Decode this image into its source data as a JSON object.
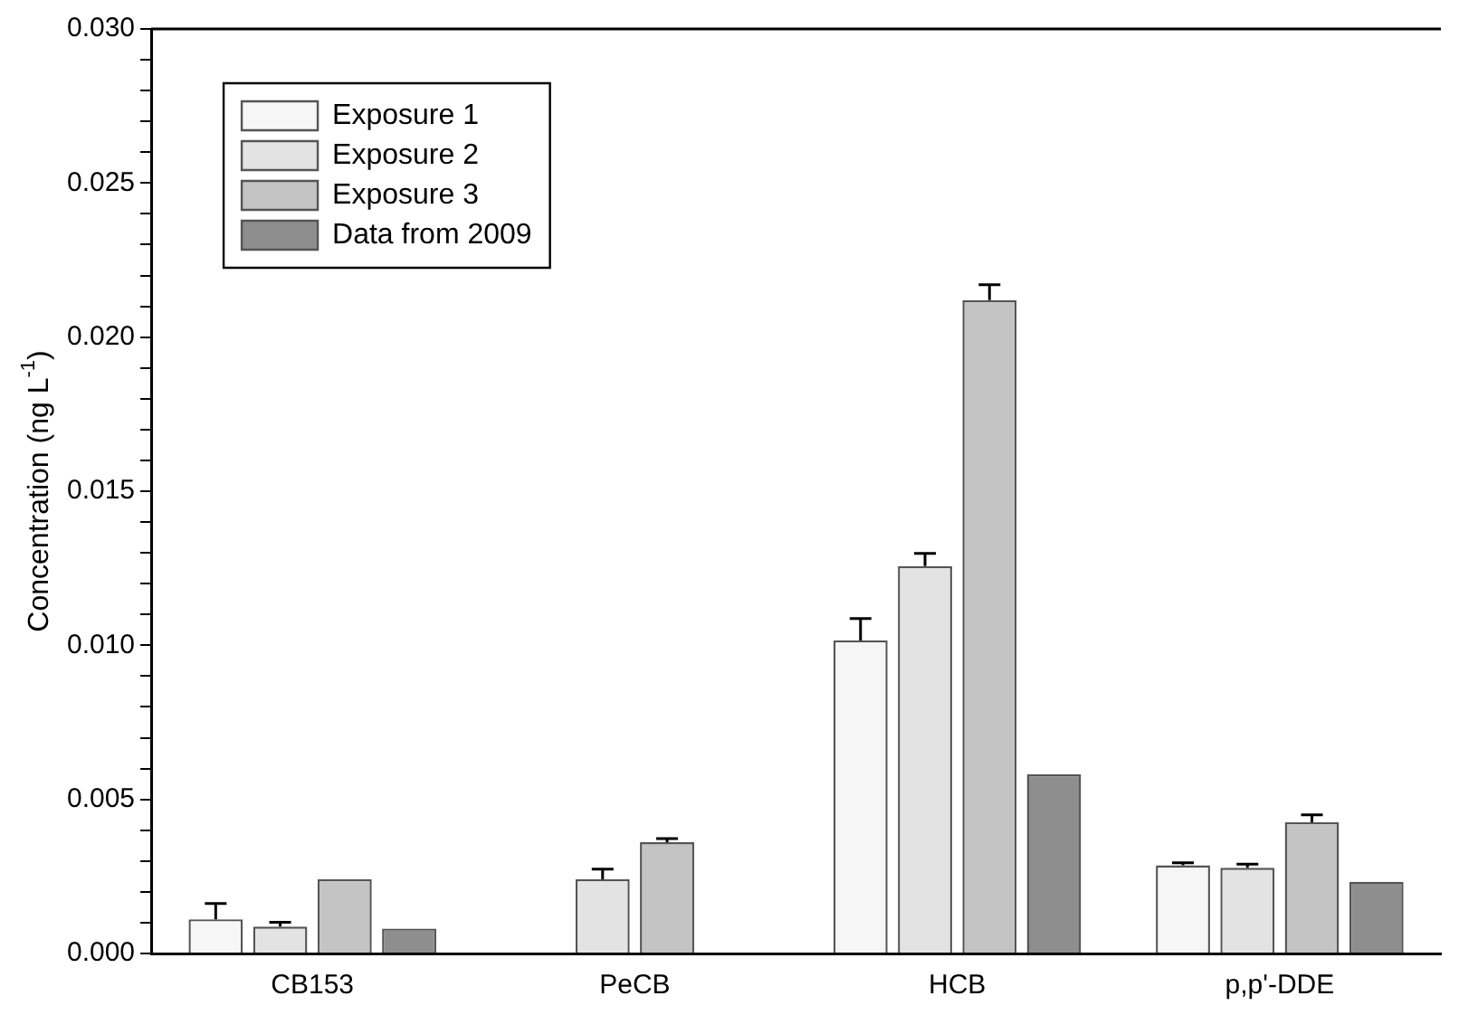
{
  "chart_data": {
    "type": "bar",
    "ylabel": "Concentration (ng L$^{-1}$)",
    "categories": [
      "CB153",
      "PeCB",
      "HCB",
      "p,p'-DDE"
    ],
    "series": [
      {
        "name": "Exposure 1",
        "color": "#f6f6f6",
        "values": [
          0.00111,
          null,
          0.01016,
          0.00286
        ],
        "errors": [
          [
            0.00111,
            0.00162
          ],
          null,
          [
            0.01016,
            0.01087
          ],
          [
            0.00286,
            0.00294
          ]
        ]
      },
      {
        "name": "Exposure 2",
        "color": "#e3e3e3",
        "values": [
          0.00087,
          0.00241,
          0.01257,
          0.00278
        ],
        "errors": [
          [
            0.00087,
            0.00101
          ],
          [
            0.00241,
            0.00274
          ],
          [
            0.01257,
            0.01298
          ],
          [
            0.00278,
            0.0029
          ]
        ]
      },
      {
        "name": "Exposure 3",
        "color": "#c4c4c4",
        "values": [
          0.00241,
          0.00361,
          0.0212,
          0.00426
        ],
        "errors": [
          null,
          [
            0.00361,
            0.00373
          ],
          [
            0.0212,
            0.0217
          ],
          [
            0.00426,
            0.0045
          ]
        ]
      },
      {
        "name": "Data from 2009",
        "color": "#8e8e8e",
        "values": [
          0.00081,
          null,
          0.00582,
          0.00233
        ],
        "errors": [
          null,
          null,
          null,
          null
        ]
      }
    ],
    "ylim": [
      0,
      0.03
    ],
    "yticks": [
      "0.000",
      {
        "value": 0.001,
        "label": null
      },
      {
        "value": 0.002,
        "label": null
      },
      {
        "value": 0.003,
        "label": null
      },
      {
        "value": 0.004,
        "label": null
      },
      {
        "value": 0.005,
        "label": "0.005"
      },
      {
        "value": 0.006,
        "label": null
      },
      {
        "value": 0.007,
        "label": null
      },
      {
        "value": 0.008,
        "label": null
      },
      {
        "value": 0.009,
        "label": null
      },
      {
        "value": 0.01,
        "label": "0.010"
      },
      {
        "value": 0.011,
        "label": null
      },
      {
        "value": 0.012,
        "label": null
      },
      {
        "value": 0.013,
        "label": null
      },
      {
        "value": 0.014,
        "label": null
      },
      {
        "value": 0.015,
        "label": "0.015"
      },
      {
        "value": 0.016,
        "label": null
      },
      {
        "value": 0.017,
        "label": null
      },
      {
        "value": 0.018,
        "label": null
      },
      {
        "value": 0.019,
        "label": null
      },
      {
        "value": 0.02,
        "label": "0.020"
      },
      {
        "value": 0.021,
        "label": null
      },
      {
        "value": 0.022,
        "label": null
      },
      {
        "value": 0.023,
        "label": null
      },
      {
        "value": 0.024,
        "label": null
      },
      {
        "value": 0.025,
        "label": "0.025"
      },
      {
        "value": 0.026,
        "label": null
      },
      {
        "value": 0.027,
        "label": null
      },
      {
        "value": 0.028,
        "label": null
      },
      {
        "value": 0.029,
        "label": null
      },
      {
        "value": 0.03,
        "label": "0.030"
      }
    ],
    "grid": false,
    "legend": "top left"
  }
}
